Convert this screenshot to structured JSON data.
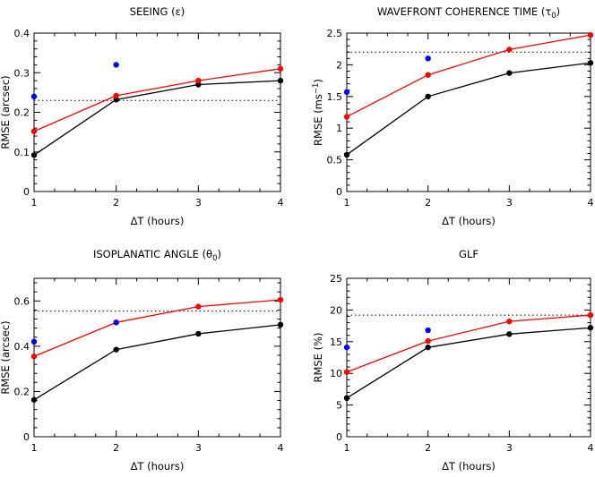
{
  "chart_data": [
    {
      "type": "line",
      "title": "SEEING (ε)",
      "xlabel": "ΔT (hours)",
      "ylabel": "RMSE (arcsec)",
      "xlim": [
        1,
        4
      ],
      "ylim": [
        0,
        0.4
      ],
      "x_ticks": [
        1,
        2,
        3,
        4
      ],
      "x_tick_labels": [
        "1",
        "2",
        "3",
        "4"
      ],
      "y_ticks": [
        0,
        0.1,
        0.2,
        0.3,
        0.4
      ],
      "y_tick_labels": [
        "0",
        "0.1",
        "0.2",
        "0.3",
        "0.4"
      ],
      "reference_line": 0.23,
      "series": [
        {
          "name": "black",
          "color": "#000000",
          "x": [
            1,
            2,
            3,
            4
          ],
          "values": [
            0.092,
            0.232,
            0.27,
            0.28
          ],
          "line": true
        },
        {
          "name": "red",
          "color": "#ff0000",
          "x": [
            1,
            2,
            3,
            4
          ],
          "values": [
            0.152,
            0.242,
            0.28,
            0.31
          ],
          "line": true
        },
        {
          "name": "blue",
          "color": "#0000ff",
          "x": [
            1,
            2
          ],
          "values": [
            0.24,
            0.32
          ],
          "line": false
        }
      ]
    },
    {
      "type": "line",
      "title": "WAVEFRONT COHERENCE TIME (τ",
      "title_sub": "0",
      "title_end": ")",
      "xlabel": "ΔT (hours)",
      "ylabel": "RMSE (ms",
      "ylabel_sup": "−1",
      "ylabel_end": ")",
      "xlim": [
        1,
        4
      ],
      "ylim": [
        0,
        2.5
      ],
      "x_ticks": [
        1,
        2,
        3,
        4
      ],
      "x_tick_labels": [
        "1",
        "2",
        "3",
        "4"
      ],
      "y_ticks": [
        0,
        0.5,
        1,
        1.5,
        2,
        2.5
      ],
      "y_tick_labels": [
        "0",
        "0.5",
        "1",
        "1.5",
        "2",
        "2.5"
      ],
      "reference_line": 2.2,
      "series": [
        {
          "name": "black",
          "color": "#000000",
          "x": [
            1,
            2,
            3,
            4
          ],
          "values": [
            0.58,
            1.5,
            1.87,
            2.03
          ],
          "line": true
        },
        {
          "name": "red",
          "color": "#ff0000",
          "x": [
            1,
            2,
            3,
            4
          ],
          "values": [
            1.18,
            1.84,
            2.24,
            2.47
          ],
          "line": true
        },
        {
          "name": "blue",
          "color": "#0000ff",
          "x": [
            1,
            2
          ],
          "values": [
            1.57,
            2.1
          ],
          "line": false
        }
      ]
    },
    {
      "type": "line",
      "title": "ISOPLANATIC ANGLE (θ",
      "title_sub": "0",
      "title_end": ")",
      "xlabel": "ΔT (hours)",
      "ylabel": "RMSE (arcsec)",
      "xlim": [
        1,
        4
      ],
      "ylim": [
        0,
        0.7
      ],
      "x_ticks": [
        1,
        2,
        3,
        4
      ],
      "x_tick_labels": [
        "1",
        "2",
        "3",
        "4"
      ],
      "y_ticks": [
        0,
        0.2,
        0.4,
        0.6
      ],
      "y_tick_labels": [
        "0",
        "0.2",
        "0.4",
        "0.6"
      ],
      "reference_line": 0.555,
      "series": [
        {
          "name": "black",
          "color": "#000000",
          "x": [
            1,
            2,
            3,
            4
          ],
          "values": [
            0.163,
            0.385,
            0.455,
            0.495
          ],
          "line": true
        },
        {
          "name": "red",
          "color": "#ff0000",
          "x": [
            1,
            2,
            3,
            4
          ],
          "values": [
            0.355,
            0.505,
            0.575,
            0.605
          ],
          "line": true
        },
        {
          "name": "blue",
          "color": "#0000ff",
          "x": [
            1,
            2
          ],
          "values": [
            0.42,
            0.505
          ],
          "line": false
        }
      ]
    },
    {
      "type": "line",
      "title": "GLF",
      "xlabel": "ΔT (hours)",
      "ylabel": "RMSE (%)",
      "xlim": [
        1,
        4
      ],
      "ylim": [
        0,
        25
      ],
      "x_ticks": [
        1,
        2,
        3,
        4
      ],
      "x_tick_labels": [
        "1",
        "2",
        "3",
        "4"
      ],
      "y_ticks": [
        0,
        5,
        10,
        15,
        20,
        25
      ],
      "y_tick_labels": [
        "0",
        "5",
        "10",
        "15",
        "20",
        "25"
      ],
      "reference_line": 19.2,
      "series": [
        {
          "name": "black",
          "color": "#000000",
          "x": [
            1,
            2,
            3,
            4
          ],
          "values": [
            6.1,
            14.1,
            16.2,
            17.2
          ],
          "line": true
        },
        {
          "name": "red",
          "color": "#ff0000",
          "x": [
            1,
            2,
            3,
            4
          ],
          "values": [
            10.2,
            15.1,
            18.2,
            19.2
          ],
          "line": true
        },
        {
          "name": "blue",
          "color": "#0000ff",
          "x": [
            1,
            2
          ],
          "values": [
            14.1,
            16.8
          ],
          "line": false
        }
      ]
    }
  ]
}
